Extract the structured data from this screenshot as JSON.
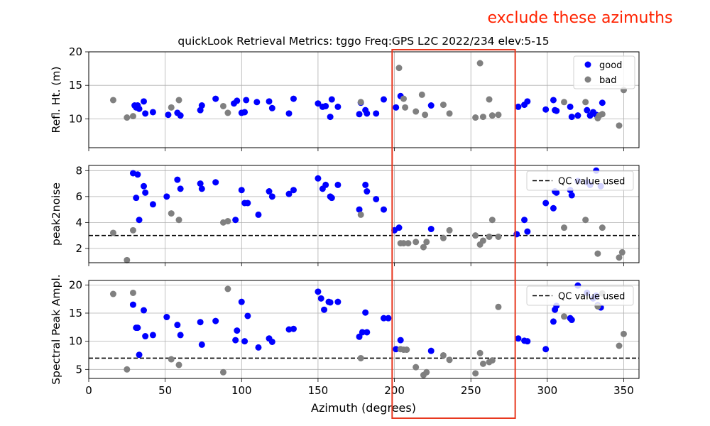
{
  "figure": {
    "title": "quickLook Retrieval Metrics: tggo Freq:GPS L2C 2022/234  elev:5-15",
    "annotation": "exclude these azimuths",
    "annotation_color": "#ff2200",
    "highlight_color": "#e8381f",
    "xlabel": "Azimuth (degrees)"
  },
  "chart_data": [
    {
      "type": "scatter",
      "ylabel": "Refl. Ht. (m)",
      "xlim": [
        0,
        360
      ],
      "ylim": [
        5.7,
        20
      ],
      "xticks": [
        0,
        50,
        100,
        150,
        200,
        250,
        300,
        350
      ],
      "yticks": [
        10,
        15,
        20
      ],
      "grid": true,
      "legend": "top-right",
      "series": [
        {
          "name": "good",
          "color": "#0000ff",
          "points": [
            [
              30,
              12
            ],
            [
              31,
              11.7
            ],
            [
              32,
              12
            ],
            [
              33,
              11.5
            ],
            [
              36,
              12.6
            ],
            [
              37,
              10.8
            ],
            [
              42,
              11
            ],
            [
              52,
              10.6
            ],
            [
              58,
              10.9
            ],
            [
              60,
              10.5
            ],
            [
              73,
              11.3
            ],
            [
              74,
              12
            ],
            [
              83,
              13
            ],
            [
              95,
              12.3
            ],
            [
              97,
              12.7
            ],
            [
              100,
              10.9
            ],
            [
              102,
              11
            ],
            [
              103,
              12.8
            ],
            [
              110,
              12.5
            ],
            [
              118,
              12.6
            ],
            [
              120,
              11.6
            ],
            [
              131,
              10.8
            ],
            [
              134,
              13
            ],
            [
              150,
              12.3
            ],
            [
              153,
              11.8
            ],
            [
              155,
              11.9
            ],
            [
              158,
              10.3
            ],
            [
              159,
              12.9
            ],
            [
              163,
              11.8
            ],
            [
              177,
              10.7
            ],
            [
              178,
              12.4
            ],
            [
              181,
              11.3
            ],
            [
              182,
              10.8
            ],
            [
              188,
              10.8
            ],
            [
              193,
              12.9
            ],
            [
              201,
              11.7
            ],
            [
              204,
              13.4
            ],
            [
              224,
              12
            ]
          ]
        },
        {
          "name": "bad",
          "color": "#808080",
          "points": [
            [
              16,
              12.8
            ],
            [
              25,
              10.2
            ],
            [
              29,
              10.4
            ],
            [
              54,
              11.7
            ],
            [
              59,
              12.8
            ],
            [
              88,
              11.9
            ],
            [
              91,
              10.9
            ],
            [
              178,
              12.5
            ],
            [
              203,
              17.6
            ],
            [
              206,
              13
            ],
            [
              207,
              11.7
            ],
            [
              214,
              11.1
            ],
            [
              218,
              13.6
            ],
            [
              220,
              10.6
            ],
            [
              232,
              12.1
            ],
            [
              236,
              10.8
            ],
            [
              253,
              10.2
            ],
            [
              256,
              18.3
            ],
            [
              258,
              10.3
            ],
            [
              262,
              12.9
            ],
            [
              264,
              10.5
            ],
            [
              268,
              10.6
            ]
          ]
        }
      ]
    },
    {
      "type": "scatter",
      "ylabel": "peak2noise",
      "xlim": [
        0,
        360
      ],
      "ylim": [
        0.9,
        8.4
      ],
      "xticks": [
        0,
        50,
        100,
        150,
        200,
        250,
        300,
        350
      ],
      "yticks": [
        2,
        4,
        6,
        8
      ],
      "grid": true,
      "legend": "top-right",
      "reference_line": {
        "value": 3,
        "label": "QC value used"
      },
      "series": [
        {
          "name": "good",
          "color": "#0000ff",
          "points": [
            [
              29,
              7.8
            ],
            [
              31,
              5.9
            ],
            [
              32,
              7.7
            ],
            [
              33,
              4.2
            ],
            [
              36,
              6.8
            ],
            [
              37,
              6.3
            ],
            [
              42,
              5.4
            ],
            [
              51,
              6
            ],
            [
              58,
              7.3
            ],
            [
              60,
              6.6
            ],
            [
              73,
              7
            ],
            [
              74,
              6.6
            ],
            [
              83,
              7.1
            ],
            [
              96,
              4.2
            ],
            [
              100,
              6.5
            ],
            [
              102,
              5.5
            ],
            [
              104,
              5.5
            ],
            [
              111,
              4.6
            ],
            [
              118,
              6.4
            ],
            [
              120,
              6
            ],
            [
              131,
              6.2
            ],
            [
              134,
              6.5
            ],
            [
              150,
              7.4
            ],
            [
              153,
              6.6
            ],
            [
              155,
              6.9
            ],
            [
              158,
              6
            ],
            [
              159,
              5.9
            ],
            [
              163,
              6.9
            ],
            [
              177,
              5
            ],
            [
              181,
              6.9
            ],
            [
              182,
              6.4
            ],
            [
              188,
              5.8
            ],
            [
              193,
              5
            ],
            [
              200,
              3.4
            ],
            [
              203,
              3.6
            ],
            [
              224,
              3.5
            ]
          ]
        },
        {
          "name": "bad",
          "color": "#808080",
          "points": [
            [
              16,
              3.2
            ],
            [
              25,
              1.1
            ],
            [
              29,
              3.4
            ],
            [
              54,
              4.7
            ],
            [
              59,
              4.2
            ],
            [
              88,
              4
            ],
            [
              91,
              4.1
            ],
            [
              178,
              4.6
            ],
            [
              204,
              2.4
            ],
            [
              206,
              2.4
            ],
            [
              209,
              2.4
            ],
            [
              214,
              2.5
            ],
            [
              219,
              2.1
            ],
            [
              221,
              2.5
            ],
            [
              232,
              2.8
            ],
            [
              236,
              3.4
            ],
            [
              253,
              3
            ],
            [
              256,
              2.3
            ],
            [
              258,
              2.6
            ],
            [
              262,
              2.9
            ],
            [
              264,
              4.2
            ],
            [
              268,
              2.9
            ]
          ]
        }
      ]
    },
    {
      "type": "scatter",
      "ylabel": "Spectral Peak Ampl.",
      "xlim": [
        0,
        360
      ],
      "ylim": [
        3.4,
        20.8
      ],
      "xticks": [
        0,
        50,
        100,
        150,
        200,
        250,
        300,
        350
      ],
      "xticklabels": [
        "0",
        "50",
        "100",
        "150",
        "200",
        "250",
        "300",
        "350"
      ],
      "yticks": [
        5,
        10,
        15,
        20
      ],
      "grid": true,
      "legend": "top-right",
      "reference_line": {
        "value": 7,
        "label": "QC value used"
      },
      "series": [
        {
          "name": "good",
          "color": "#0000ff",
          "points": [
            [
              29,
              16.5
            ],
            [
              31,
              12.4
            ],
            [
              32,
              12.4
            ],
            [
              33,
              7.6
            ],
            [
              36,
              15.5
            ],
            [
              37,
              10.9
            ],
            [
              42,
              11.1
            ],
            [
              51,
              14.3
            ],
            [
              58,
              12.9
            ],
            [
              60,
              11.1
            ],
            [
              73,
              13.4
            ],
            [
              74,
              9.4
            ],
            [
              83,
              13.6
            ],
            [
              96,
              10.2
            ],
            [
              97,
              11.9
            ],
            [
              100,
              17
            ],
            [
              102,
              10
            ],
            [
              104,
              14.5
            ],
            [
              111,
              8.9
            ],
            [
              118,
              10.5
            ],
            [
              120,
              9.9
            ],
            [
              131,
              12.1
            ],
            [
              134,
              12.2
            ],
            [
              150,
              18.8
            ],
            [
              152,
              17.6
            ],
            [
              154,
              15.6
            ],
            [
              157,
              17
            ],
            [
              158,
              16.9
            ],
            [
              163,
              17
            ],
            [
              177,
              10.8
            ],
            [
              179,
              11.6
            ],
            [
              181,
              15.1
            ],
            [
              182,
              11.6
            ],
            [
              193,
              14.1
            ],
            [
              196,
              14.1
            ],
            [
              201,
              8.6
            ],
            [
              204,
              10.2
            ],
            [
              224,
              8.3
            ]
          ]
        },
        {
          "name": "bad",
          "color": "#808080",
          "points": [
            [
              16,
              18.4
            ],
            [
              25,
              5
            ],
            [
              29,
              18.6
            ],
            [
              54,
              6.8
            ],
            [
              59,
              5.8
            ],
            [
              88,
              4.5
            ],
            [
              91,
              19.3
            ],
            [
              178,
              7
            ],
            [
              204,
              8.6
            ],
            [
              206,
              8.5
            ],
            [
              208,
              8.5
            ],
            [
              214,
              5.4
            ],
            [
              219,
              4
            ],
            [
              221,
              4.5
            ],
            [
              232,
              7.5
            ],
            [
              236,
              6.7
            ],
            [
              253,
              4.3
            ],
            [
              256,
              7.9
            ],
            [
              258,
              6
            ],
            [
              262,
              6.3
            ],
            [
              264,
              6.6
            ],
            [
              268,
              16.1
            ]
          ]
        }
      ]
    }
  ],
  "right_section": {
    "refl_good": [
      [
        281,
        11.8
      ],
      [
        285,
        12.1
      ],
      [
        287,
        12.6
      ],
      [
        299,
        11.4
      ],
      [
        304,
        12.8
      ],
      [
        305,
        11.3
      ],
      [
        306,
        11.2
      ],
      [
        315,
        11.8
      ],
      [
        316,
        10.3
      ],
      [
        320,
        10.5
      ],
      [
        326,
        11.3
      ],
      [
        328,
        10.5
      ],
      [
        330,
        11
      ],
      [
        332,
        10.6
      ],
      [
        336,
        12.4
      ]
    ],
    "refl_bad": [
      [
        311,
        12.5
      ],
      [
        325,
        12.5
      ],
      [
        333,
        10.1
      ],
      [
        334,
        10.5
      ],
      [
        336,
        10.7
      ],
      [
        347,
        9
      ],
      [
        350,
        14.3
      ]
    ],
    "p2n_good": [
      [
        280,
        3.1
      ],
      [
        285,
        4.2
      ],
      [
        287,
        3.3
      ],
      [
        299,
        5.5
      ],
      [
        304,
        5.1
      ],
      [
        305,
        6.4
      ],
      [
        306,
        6.3
      ],
      [
        315,
        6.5
      ],
      [
        316,
        6.1
      ],
      [
        320,
        7.2
      ],
      [
        326,
        7.1
      ],
      [
        328,
        6.9
      ],
      [
        332,
        8
      ],
      [
        335,
        6.8
      ]
    ],
    "p2n_bad": [
      [
        311,
        3.6
      ],
      [
        325,
        4.2
      ],
      [
        333,
        1.6
      ],
      [
        336,
        3.6
      ],
      [
        347,
        1.3
      ],
      [
        349,
        1.7
      ]
    ],
    "amp_good": [
      [
        281,
        10.5
      ],
      [
        285,
        10.1
      ],
      [
        287,
        10
      ],
      [
        299,
        8.6
      ],
      [
        304,
        13.5
      ],
      [
        305,
        15.6
      ],
      [
        306,
        16.3
      ],
      [
        315,
        14.1
      ],
      [
        316,
        13.8
      ],
      [
        320,
        19.9
      ],
      [
        326,
        18.6
      ],
      [
        330,
        17.6
      ],
      [
        332,
        18.1
      ],
      [
        333,
        16.4
      ],
      [
        335,
        16
      ]
    ],
    "amp_bad": [
      [
        311,
        14.4
      ],
      [
        333,
        16.2
      ],
      [
        336,
        18.5
      ],
      [
        347,
        9.2
      ],
      [
        350,
        11.3
      ]
    ]
  }
}
